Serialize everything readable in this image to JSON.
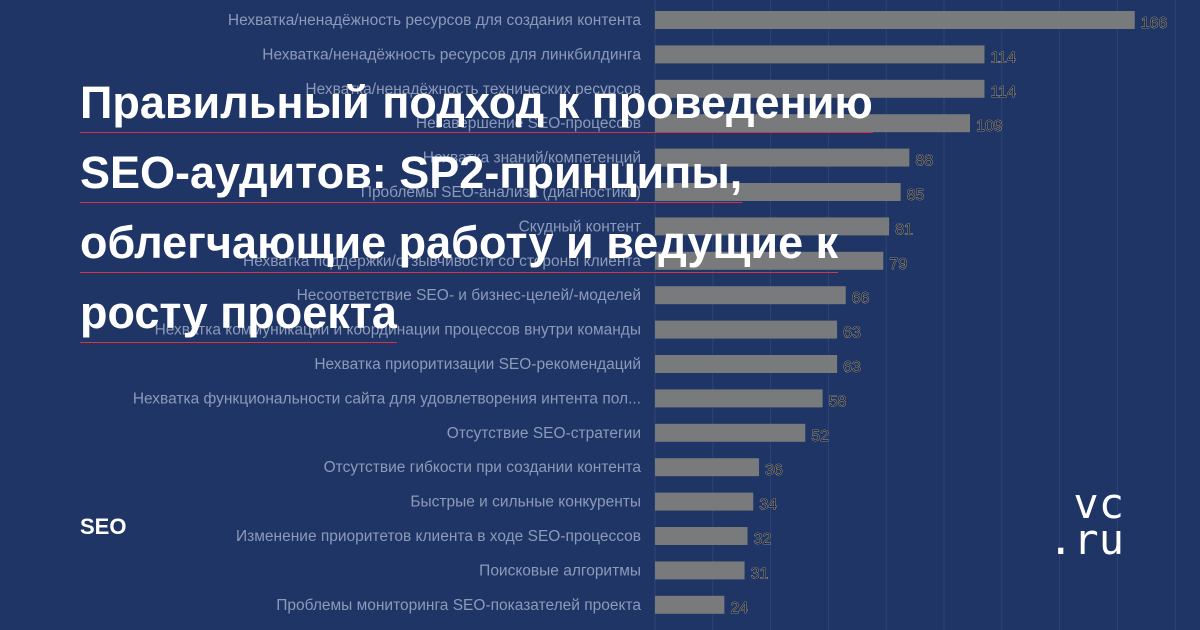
{
  "chart_data": {
    "type": "bar",
    "orientation": "horizontal",
    "categories": [
      "Нехватка/ненадёжность ресурсов для создания контента",
      "Нехватка/ненадёжность ресурсов для линкбилдинга",
      "Нехватка/ненадёжность технических ресурсов",
      "Незавершение SEO-процессов",
      "Нехватка знаний/компетенций",
      "Проблемы SEO-анализа (диагностики)",
      "Скудный контент",
      "Нехватка поддержки/отзывчивости со стороны клиента",
      "Несоответствие SEO- и бизнес-целей/-моделей",
      "Нехватка коммуникации и координации процессов внутри команды",
      "Нехватка приоритизации SEO-рекомендаций",
      "Нехватка функциональности сайта для удовлетворения интента пол...",
      "Отсутствие SEO-стратегии",
      "Отсутствие гибкости при создании контента",
      "Быстрые и сильные конкуренты",
      "Изменение приоритетов клиента в ходе SEO-процессов",
      "Поисковые алгоритмы",
      "Проблемы мониторинга SEO-показателей проекта"
    ],
    "values": [
      166,
      114,
      114,
      109,
      88,
      85,
      81,
      79,
      66,
      63,
      63,
      58,
      52,
      36,
      34,
      32,
      31,
      24
    ],
    "xlim": [
      0,
      180
    ],
    "grid": true,
    "bar_color": "#797a7c"
  },
  "headline": {
    "line1": "Правильный подход к проведению",
    "line2": "SEO-аудитов: SP2-принципы,",
    "line3": "облегчающие работу и ведущие к",
    "line4": "росту проекта"
  },
  "tag": "SEO",
  "logo": {
    "line1": "vc",
    "line2": ".ru"
  },
  "colors": {
    "background": "#1e3566",
    "headline": "#ffffff",
    "underline": "#d8324a",
    "category_label": "#8d9ab8"
  }
}
